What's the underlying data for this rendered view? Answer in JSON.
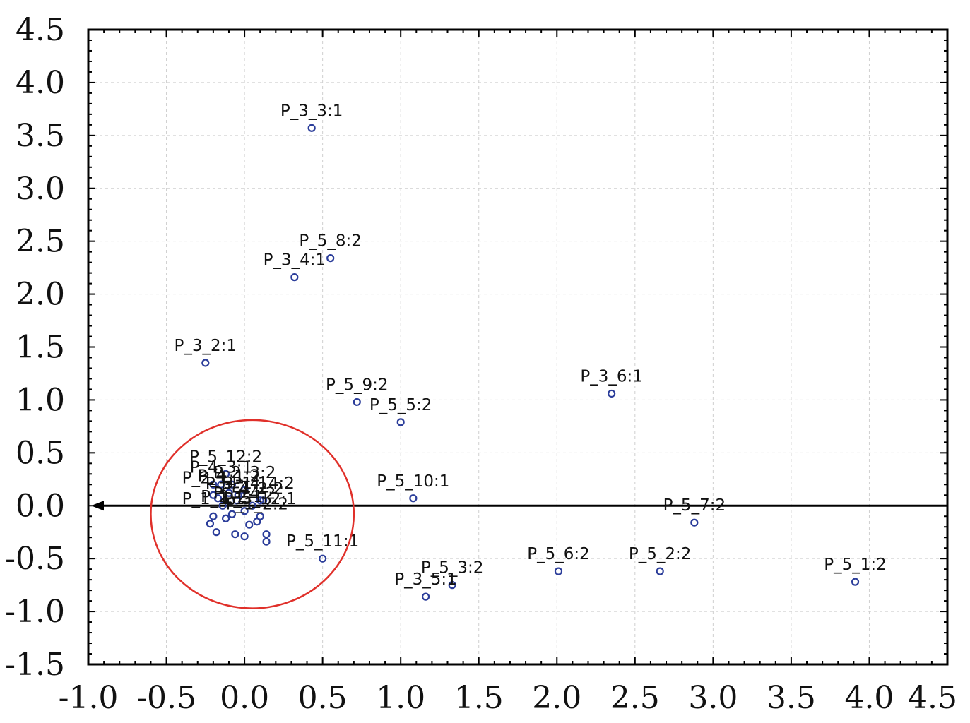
{
  "chart_data": {
    "type": "scatter",
    "title": "",
    "xlabel": "",
    "ylabel": "",
    "xlim": [
      -1.0,
      4.5
    ],
    "ylim": [
      -1.5,
      4.5
    ],
    "x_ticks": [
      "-1.0",
      "-0.5",
      "0.0",
      "0.5",
      "1.0",
      "1.5",
      "2.0",
      "2.5",
      "3.0",
      "3.5",
      "4.0",
      "4.5"
    ],
    "y_ticks": [
      "4.5",
      "4.0",
      "3.5",
      "3.0",
      "2.5",
      "2.0",
      "1.5",
      "1.0",
      "0.5",
      "0.0",
      "-0.5",
      "-1.0",
      "-1.5"
    ],
    "grid": true,
    "marker_color": "#2b3d9a",
    "ellipse_color": "#e0302a",
    "axis_arrow_color": "#000000",
    "points": [
      {
        "label": "P_3_3:1",
        "x": 0.43,
        "y": 3.57
      },
      {
        "label": "P_5_8:2",
        "x": 0.55,
        "y": 2.34
      },
      {
        "label": "P_3_4:1",
        "x": 0.32,
        "y": 2.16
      },
      {
        "label": "P_3_2:1",
        "x": -0.25,
        "y": 1.35
      },
      {
        "label": "P_5_9:2",
        "x": 0.72,
        "y": 0.98
      },
      {
        "label": "P_5_5:2",
        "x": 1.0,
        "y": 0.79
      },
      {
        "label": "P_3_6:1",
        "x": 2.35,
        "y": 1.06
      },
      {
        "label": "P_5_10:1",
        "x": 1.08,
        "y": 0.07
      },
      {
        "label": "P_5_7:2",
        "x": 2.88,
        "y": -0.16
      },
      {
        "label": "P_5_11:1",
        "x": 0.5,
        "y": -0.5
      },
      {
        "label": "P_5_6:2",
        "x": 2.01,
        "y": -0.62
      },
      {
        "label": "P_5_2:2",
        "x": 2.66,
        "y": -0.62
      },
      {
        "label": "P_5_1:2",
        "x": 3.91,
        "y": -0.72
      },
      {
        "label": "P_5_3:2",
        "x": 1.33,
        "y": -0.75
      },
      {
        "label": "P_3_5:1",
        "x": 1.16,
        "y": -0.86
      },
      {
        "label": "P_5_12:2",
        "x": -0.12,
        "y": 0.3
      },
      {
        "label": "P_3_1:1",
        "x": -0.05,
        "y": 0.05
      },
      {
        "label": "P_5_4:2",
        "x": 0.0,
        "y": -0.05
      },
      {
        "label": "P_5_12:1",
        "x": 0.1,
        "y": -0.1
      },
      {
        "label": "P_4_1:2",
        "x": -0.1,
        "y": 0.12
      },
      {
        "label": "P_4_2:2",
        "x": 0.05,
        "y": 0.0
      },
      {
        "label": "P_4_3:1",
        "x": -0.15,
        "y": 0.2
      },
      {
        "label": "P_4_4:2",
        "x": 0.12,
        "y": 0.05
      },
      {
        "label": "P_2_1:1",
        "x": -0.2,
        "y": 0.1
      },
      {
        "label": "P_2_2:1",
        "x": -0.08,
        "y": -0.08
      },
      {
        "label": "P_2_3:2",
        "x": 0.0,
        "y": 0.15
      },
      {
        "label": "P_1_1:1",
        "x": -0.2,
        "y": -0.1
      },
      {
        "label": "P_1_2:2",
        "x": 0.08,
        "y": -0.15
      },
      {
        "label": null,
        "x": -0.18,
        "y": -0.25
      },
      {
        "label": null,
        "x": -0.06,
        "y": -0.27
      },
      {
        "label": null,
        "x": 0.0,
        "y": -0.29
      },
      {
        "label": null,
        "x": 0.14,
        "y": -0.27
      },
      {
        "label": null,
        "x": 0.14,
        "y": -0.34
      },
      {
        "label": null,
        "x": -0.22,
        "y": -0.17
      },
      {
        "label": null,
        "x": -0.12,
        "y": -0.12
      },
      {
        "label": null,
        "x": 0.03,
        "y": -0.18
      },
      {
        "label": null,
        "x": -0.04,
        "y": 0.1
      },
      {
        "label": null,
        "x": 0.1,
        "y": 0.05
      },
      {
        "label": null,
        "x": -0.14,
        "y": 0.0
      },
      {
        "label": null,
        "x": -0.17,
        "y": 0.07
      },
      {
        "label": null,
        "x": -0.08,
        "y": 0.2
      },
      {
        "label": null,
        "x": -0.2,
        "y": 0.2
      }
    ],
    "ellipse": {
      "cx": 0.05,
      "cy": -0.08,
      "rx": 0.65,
      "ry": 0.89
    }
  }
}
